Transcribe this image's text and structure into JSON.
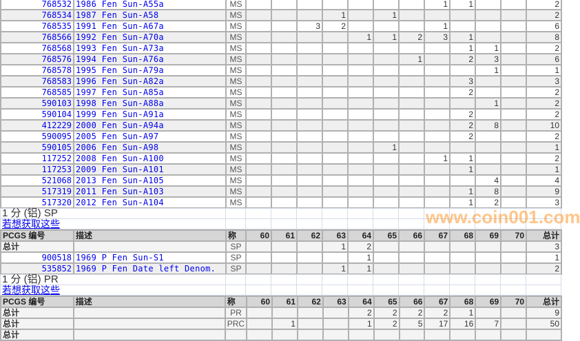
{
  "grades": [
    "60",
    "61",
    "62",
    "63",
    "64",
    "65",
    "66",
    "67",
    "68",
    "69",
    "70"
  ],
  "header": {
    "pcgs": "PCGS 编号",
    "desc": "描述",
    "des": "称",
    "total": "总计"
  },
  "ms_rows": [
    {
      "id": "768532",
      "desc": "1986 Fen Sun-A55a",
      "des": "MS",
      "g": [
        "",
        "",
        "",
        "",
        "",
        "",
        "",
        "1",
        "1",
        "",
        ""
      ],
      "total": "2"
    },
    {
      "id": "768534",
      "desc": "1987 Fen Sun-A58",
      "des": "MS",
      "g": [
        "",
        "",
        "",
        "1",
        "",
        "1",
        "",
        "",
        "",
        "",
        ""
      ],
      "total": "2"
    },
    {
      "id": "768535",
      "desc": "1991 Fen Sun-A67a",
      "des": "MS",
      "g": [
        "",
        "",
        "3",
        "2",
        "",
        "",
        "",
        "1",
        "",
        "",
        ""
      ],
      "total": "6"
    },
    {
      "id": "768566",
      "desc": "1992 Fen Sun-A70a",
      "des": "MS",
      "g": [
        "",
        "",
        "",
        "",
        "1",
        "1",
        "2",
        "3",
        "1",
        "",
        ""
      ],
      "total": "8"
    },
    {
      "id": "768568",
      "desc": "1993 Fen Sun-A73a",
      "des": "MS",
      "g": [
        "",
        "",
        "",
        "",
        "",
        "",
        "",
        "",
        "1",
        "1",
        ""
      ],
      "total": "2"
    },
    {
      "id": "768576",
      "desc": "1994 Fen Sun-A76a",
      "des": "MS",
      "g": [
        "",
        "",
        "",
        "",
        "",
        "",
        "1",
        "",
        "2",
        "3",
        ""
      ],
      "total": "6"
    },
    {
      "id": "768578",
      "desc": "1995 Fen Sun-A79a",
      "des": "MS",
      "g": [
        "",
        "",
        "",
        "",
        "",
        "",
        "",
        "",
        "",
        "1",
        ""
      ],
      "total": "1"
    },
    {
      "id": "768583",
      "desc": "1996 Fen Sun-A82a",
      "des": "MS",
      "g": [
        "",
        "",
        "",
        "",
        "",
        "",
        "",
        "",
        "3",
        "",
        ""
      ],
      "total": "3"
    },
    {
      "id": "768585",
      "desc": "1997 Fen Sun-A85a",
      "des": "MS",
      "g": [
        "",
        "",
        "",
        "",
        "",
        "",
        "",
        "",
        "2",
        "",
        ""
      ],
      "total": "2"
    },
    {
      "id": "590103",
      "desc": "1998 Fen Sun-A88a",
      "des": "MS",
      "g": [
        "",
        "",
        "",
        "",
        "",
        "",
        "",
        "",
        "",
        "1",
        ""
      ],
      "total": "2"
    },
    {
      "id": "590104",
      "desc": "1999 Fen Sun-A91a",
      "des": "MS",
      "g": [
        "",
        "",
        "",
        "",
        "",
        "",
        "",
        "",
        "2",
        "",
        ""
      ],
      "total": "2"
    },
    {
      "id": "412229",
      "desc": "2000 Fen Sun-A94a",
      "des": "MS",
      "g": [
        "",
        "",
        "",
        "",
        "",
        "",
        "",
        "",
        "2",
        "8",
        ""
      ],
      "total": "10"
    },
    {
      "id": "590095",
      "desc": "2005 Fen Sun-A97",
      "des": "MS",
      "g": [
        "",
        "",
        "",
        "",
        "",
        "",
        "",
        "",
        "2",
        "",
        ""
      ],
      "total": "2"
    },
    {
      "id": "590105",
      "desc": "2006 Fen Sun-A98",
      "des": "MS",
      "g": [
        "",
        "",
        "",
        "",
        "",
        "1",
        "",
        "",
        "",
        "",
        ""
      ],
      "total": "1"
    },
    {
      "id": "117252",
      "desc": "2008 Fen Sun-A100",
      "des": "MS",
      "g": [
        "",
        "",
        "",
        "",
        "",
        "",
        "",
        "1",
        "1",
        "",
        ""
      ],
      "total": "2"
    },
    {
      "id": "117253",
      "desc": "2009 Fen Sun-A101",
      "des": "MS",
      "g": [
        "",
        "",
        "",
        "",
        "",
        "",
        "",
        "",
        "1",
        "",
        ""
      ],
      "total": "1"
    },
    {
      "id": "521068",
      "desc": "2013 Fen Sun-A105",
      "des": "MS",
      "g": [
        "",
        "",
        "",
        "",
        "",
        "",
        "",
        "",
        "",
        "4",
        ""
      ],
      "total": "4"
    },
    {
      "id": "517319",
      "desc": "2011 Fen Sun-A103",
      "des": "MS",
      "g": [
        "",
        "",
        "",
        "",
        "",
        "",
        "",
        "",
        "1",
        "8",
        ""
      ],
      "total": "9"
    },
    {
      "id": "517320",
      "desc": "2012 Fen Sun-A104",
      "des": "MS",
      "g": [
        "",
        "",
        "",
        "",
        "",
        "",
        "",
        "",
        "1",
        "2",
        ""
      ],
      "total": "3"
    }
  ],
  "sections": [
    {
      "title": "1 分 (铝) SP",
      "link": "若想获取这些",
      "rows": [
        {
          "total_row": true,
          "id": "总计",
          "desc": "",
          "des": "SP",
          "g": [
            "",
            "",
            "",
            "1",
            "2",
            "",
            "",
            "",
            "",
            "",
            ""
          ],
          "total": "3"
        },
        {
          "id": "900518",
          "desc": "1969 P Fen Sun-S1",
          "des": "SP",
          "g": [
            "",
            "",
            "",
            "",
            "1",
            "",
            "",
            "",
            "",
            "",
            ""
          ],
          "total": "1"
        },
        {
          "id": "535852",
          "desc": "1969 P Fen Date left Denom.",
          "des": "SP",
          "g": [
            "",
            "",
            "",
            "1",
            "1",
            "",
            "",
            "",
            "",
            "",
            ""
          ],
          "total": "2"
        }
      ]
    },
    {
      "title": "1 分 (铝) PR",
      "link": "若想获取这些",
      "rows": [
        {
          "total_row": true,
          "id": "总计",
          "desc": "",
          "des": "PR",
          "g": [
            "",
            "",
            "",
            "",
            "2",
            "2",
            "2",
            "2",
            "1",
            "",
            ""
          ],
          "total": "9"
        },
        {
          "total_row": true,
          "id": "总计",
          "desc": "",
          "des": "PRC",
          "g": [
            "",
            "1",
            "",
            "",
            "1",
            "2",
            "5",
            "17",
            "16",
            "7",
            ""
          ],
          "total": "50"
        },
        {
          "total_row": true,
          "id": "总计",
          "desc": "",
          "des": "",
          "g": [
            "",
            "",
            "",
            "",
            "",
            "",
            "",
            "",
            "",
            "",
            ""
          ],
          "total": ""
        }
      ]
    }
  ],
  "watermark": "www.coin001.com"
}
